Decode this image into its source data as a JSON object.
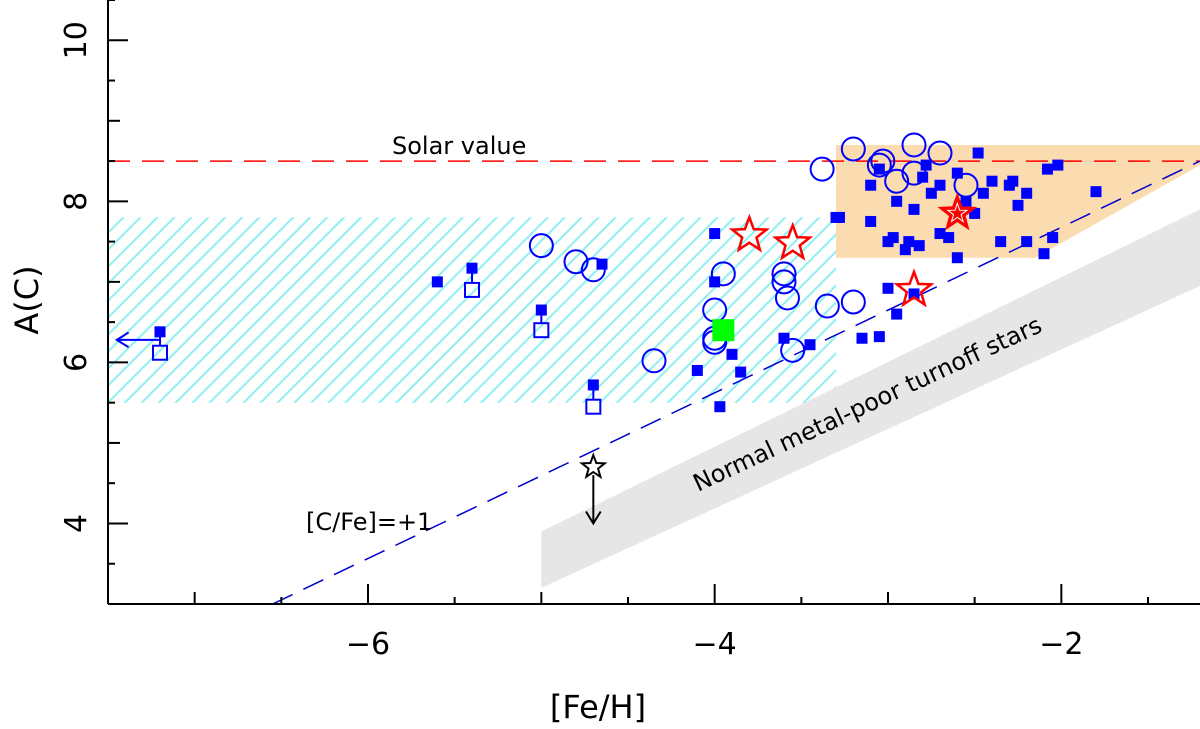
{
  "chart_data": {
    "type": "scatter",
    "title": "",
    "xlabel": "[Fe/H]",
    "ylabel": "A(C)",
    "xlim": [
      -7.5,
      -1.2
    ],
    "ylim": [
      3.0,
      10.5
    ],
    "xticks": [
      -6,
      -4,
      -2
    ],
    "yticks": [
      4,
      6,
      8,
      10
    ],
    "colors": {
      "blue": "#0000ff",
      "red": "#ff0000",
      "green": "#00ff00",
      "cyan_hatch": "#8ef0f0",
      "orange_band": "#fbdcb0",
      "gray_band": "#e6e6e6",
      "solar_line": "#ff0000",
      "cfe_line": "#0000cc"
    },
    "annotations": {
      "solar": "Solar value",
      "cfe": "[C/Fe]=+1",
      "turnoff": "Normal metal-poor turnoff stars"
    },
    "reference_lines": [
      {
        "name": "solar-value-line",
        "points": [
          [
            -7.5,
            8.5
          ],
          [
            -1.2,
            8.5
          ]
        ]
      },
      {
        "name": "cfe-plus-one-line",
        "points": [
          [
            -6.55,
            3.0
          ],
          [
            -1.2,
            8.5
          ]
        ]
      }
    ],
    "regions": [
      {
        "name": "cyan-hatched-region",
        "polygon": [
          [
            -7.5,
            5.5
          ],
          [
            -7.5,
            7.8
          ],
          [
            -3.3,
            7.8
          ],
          [
            -3.3,
            5.5
          ]
        ]
      },
      {
        "name": "orange-region",
        "polygon": [
          [
            -3.3,
            7.3
          ],
          [
            -3.3,
            8.7
          ],
          [
            -1.2,
            8.7
          ],
          [
            -1.2,
            8.45
          ],
          [
            -2.15,
            7.3
          ]
        ]
      },
      {
        "name": "gray-turnoff-band",
        "polygon": [
          [
            -5.0,
            3.2
          ],
          [
            -1.2,
            6.95
          ],
          [
            -1.2,
            7.9
          ],
          [
            -5.0,
            3.9
          ]
        ]
      }
    ],
    "series": [
      {
        "name": "filled-squares",
        "marker": "filled-square",
        "points": [
          [
            -7.2,
            6.38
          ],
          [
            -5.6,
            7.0
          ],
          [
            -5.4,
            7.17
          ],
          [
            -5.0,
            6.65
          ],
          [
            -4.7,
            5.72
          ],
          [
            -4.65,
            7.22
          ],
          [
            -4.1,
            5.9
          ],
          [
            -4.0,
            7.6
          ],
          [
            -4.0,
            7.0
          ],
          [
            -3.97,
            5.45
          ],
          [
            -3.9,
            6.1
          ],
          [
            -3.85,
            5.88
          ],
          [
            -3.6,
            6.3
          ],
          [
            -3.45,
            6.22
          ],
          [
            -3.3,
            7.8
          ],
          [
            -3.28,
            7.8
          ],
          [
            -3.15,
            6.3
          ],
          [
            -3.1,
            7.75
          ],
          [
            -3.1,
            8.2
          ],
          [
            -3.05,
            8.4
          ],
          [
            -3.0,
            7.5
          ],
          [
            -3.05,
            6.32
          ],
          [
            -3.0,
            6.92
          ],
          [
            -2.97,
            7.55
          ],
          [
            -2.95,
            6.6
          ],
          [
            -2.95,
            8.0
          ],
          [
            -2.9,
            7.4
          ],
          [
            -2.88,
            7.5
          ],
          [
            -2.85,
            7.9
          ],
          [
            -2.82,
            7.45
          ],
          [
            -2.8,
            8.3
          ],
          [
            -2.78,
            8.45
          ],
          [
            -2.75,
            8.1
          ],
          [
            -2.7,
            7.6
          ],
          [
            -2.7,
            8.2
          ],
          [
            -2.65,
            7.55
          ],
          [
            -2.6,
            7.3
          ],
          [
            -2.6,
            8.35
          ],
          [
            -2.55,
            8.0
          ],
          [
            -2.5,
            7.85
          ],
          [
            -2.48,
            8.6
          ],
          [
            -2.45,
            8.1
          ],
          [
            -2.4,
            8.25
          ],
          [
            -2.35,
            7.5
          ],
          [
            -2.3,
            8.2
          ],
          [
            -2.28,
            8.25
          ],
          [
            -2.25,
            7.95
          ],
          [
            -2.2,
            8.1
          ],
          [
            -2.2,
            7.5
          ],
          [
            -2.1,
            7.35
          ],
          [
            -2.08,
            8.4
          ],
          [
            -2.05,
            7.55
          ],
          [
            -2.02,
            8.45
          ],
          [
            -1.8,
            8.12
          ],
          [
            -2.85,
            6.85
          ]
        ]
      },
      {
        "name": "open-squares",
        "marker": "open-square",
        "points": [
          [
            -7.2,
            6.12
          ],
          [
            -5.4,
            6.9
          ],
          [
            -5.0,
            6.4
          ],
          [
            -4.7,
            5.45
          ]
        ]
      },
      {
        "name": "open-circles",
        "marker": "open-circle",
        "points": [
          [
            -5.0,
            7.45
          ],
          [
            -4.8,
            7.25
          ],
          [
            -4.7,
            7.15
          ],
          [
            -4.35,
            6.02
          ],
          [
            -4.0,
            6.3
          ],
          [
            -4.0,
            6.25
          ],
          [
            -4.0,
            6.65
          ],
          [
            -3.95,
            7.1
          ],
          [
            -3.6,
            7.1
          ],
          [
            -3.6,
            7.0
          ],
          [
            -3.58,
            6.8
          ],
          [
            -3.55,
            6.15
          ],
          [
            -3.35,
            6.7
          ],
          [
            -3.2,
            6.75
          ],
          [
            -3.2,
            8.65
          ],
          [
            -3.05,
            8.45
          ],
          [
            -3.03,
            8.5
          ],
          [
            -2.95,
            8.25
          ],
          [
            -2.85,
            8.7
          ],
          [
            -2.85,
            8.35
          ],
          [
            -2.7,
            8.6
          ],
          [
            -2.55,
            8.2
          ],
          [
            -3.38,
            8.4
          ]
        ]
      },
      {
        "name": "open-stars",
        "marker": "open-star",
        "points": [
          [
            -3.8,
            7.58
          ],
          [
            -3.55,
            7.48
          ],
          [
            -2.85,
            6.9
          ]
        ]
      },
      {
        "name": "filled-star",
        "marker": "filled-star",
        "points": [
          [
            -2.6,
            7.85
          ]
        ]
      },
      {
        "name": "black-star-upper-limit",
        "marker": "black-star",
        "points": [
          [
            -4.7,
            4.7
          ]
        ]
      },
      {
        "name": "green-square",
        "marker": "green-square",
        "points": [
          [
            -3.95,
            6.4
          ]
        ]
      }
    ],
    "limits": [
      {
        "name": "fe-upper-limit-arrow",
        "from": [
          -7.2,
          6.28
        ],
        "to": [
          -7.45,
          6.28
        ]
      },
      {
        "name": "carbon-upper-limit-arrow",
        "from": [
          -4.7,
          4.6
        ],
        "to": [
          -4.7,
          4.0
        ]
      }
    ]
  }
}
